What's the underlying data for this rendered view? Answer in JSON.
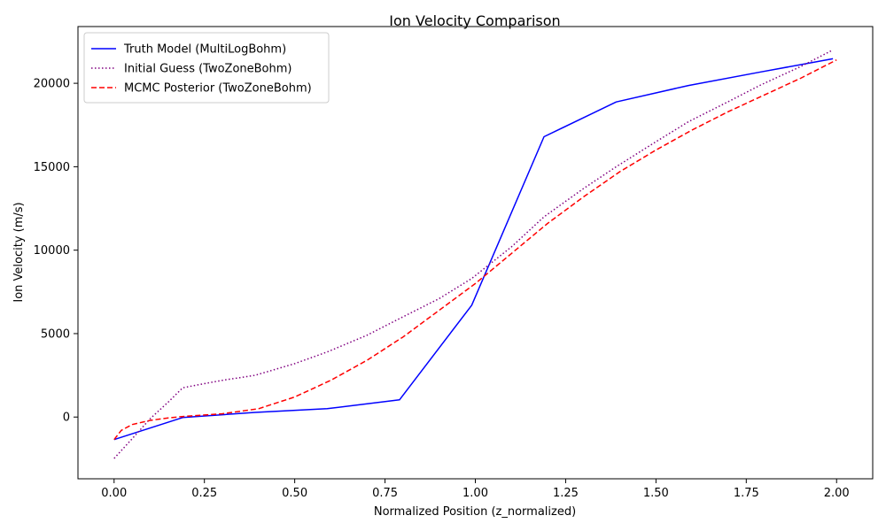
{
  "chart_data": {
    "type": "line",
    "title": "Ion Velocity Comparison",
    "xlabel": "Normalized Position (z_normalized)",
    "ylabel": "Ion Velocity (m/s)",
    "xlim": [
      -0.1,
      2.1
    ],
    "ylim": [
      -3700,
      23400
    ],
    "xticks": [
      0.0,
      0.25,
      0.5,
      0.75,
      1.0,
      1.25,
      1.5,
      1.75,
      2.0
    ],
    "xtick_labels": [
      "0.00",
      "0.25",
      "0.50",
      "0.75",
      "1.00",
      "1.25",
      "1.50",
      "1.75",
      "2.00"
    ],
    "yticks": [
      0,
      5000,
      10000,
      15000,
      20000
    ],
    "ytick_labels": [
      "0",
      "5000",
      "10000",
      "15000",
      "20000"
    ],
    "grid": false,
    "legend_position": "top-left",
    "series": [
      {
        "name": "Truth Model (MultiLogBohm)",
        "color": "#0000ff",
        "style": "solid",
        "x": [
          0.0,
          0.19,
          0.39,
          0.59,
          0.79,
          0.99,
          1.19,
          1.39,
          1.59,
          1.79,
          1.99
        ],
        "y": [
          -1350,
          -30,
          280,
          500,
          1030,
          6700,
          16800,
          18880,
          19870,
          20680,
          21470
        ]
      },
      {
        "name": "Initial Guess (TwoZoneBohm)",
        "color": "#800080",
        "style": "dotted",
        "x": [
          0.0,
          0.05,
          0.1,
          0.15,
          0.19,
          0.25,
          0.3,
          0.39,
          0.5,
          0.59,
          0.7,
          0.79,
          0.9,
          0.99,
          1.1,
          1.19,
          1.3,
          1.39,
          1.5,
          1.59,
          1.7,
          1.79,
          1.9,
          1.99
        ],
        "y": [
          -2480,
          -1300,
          -100,
          900,
          1750,
          2000,
          2200,
          2500,
          3200,
          3900,
          4900,
          5900,
          7100,
          8300,
          10200,
          12000,
          13700,
          15000,
          16500,
          17700,
          18900,
          19900,
          21000,
          22000
        ]
      },
      {
        "name": "MCMC Posterior (TwoZoneBohm)",
        "color": "#ff0000",
        "style": "dashed",
        "x": [
          0.0,
          0.02,
          0.05,
          0.1,
          0.15,
          0.2,
          0.3,
          0.4,
          0.5,
          0.6,
          0.7,
          0.8,
          0.9,
          1.0,
          1.1,
          1.2,
          1.3,
          1.4,
          1.5,
          1.6,
          1.7,
          1.8,
          1.9,
          2.0
        ],
        "y": [
          -1350,
          -800,
          -450,
          -200,
          -50,
          50,
          200,
          500,
          1200,
          2200,
          3400,
          4800,
          6400,
          8000,
          9800,
          11600,
          13200,
          14700,
          16000,
          17200,
          18300,
          19300,
          20300,
          21400
        ]
      }
    ]
  }
}
